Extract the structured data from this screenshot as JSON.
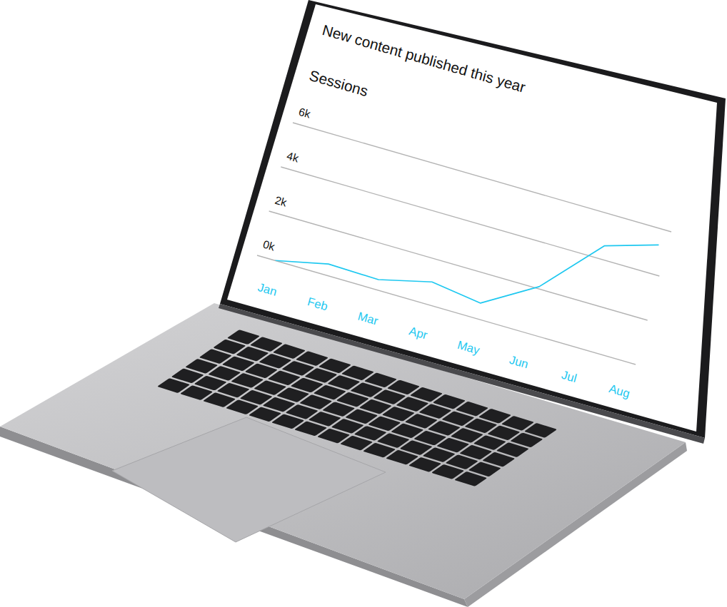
{
  "chart_data": {
    "type": "line",
    "title": "New content published this year",
    "ylabel": "Sessions",
    "categories": [
      "Jan",
      "Feb",
      "Mar",
      "Apr",
      "May",
      "Jun",
      "Jul",
      "Aug"
    ],
    "values": [
      0,
      500,
      450,
      1000,
      700,
      2100,
      4600,
      5300
    ],
    "color": "#1ec8f0",
    "ylim": [
      0,
      6000
    ],
    "yticks": [
      {
        "value": 0,
        "label": "0k"
      },
      {
        "value": 2000,
        "label": "2k"
      },
      {
        "value": 4000,
        "label": "4k"
      },
      {
        "value": 6000,
        "label": "6k"
      }
    ],
    "grid": true
  }
}
